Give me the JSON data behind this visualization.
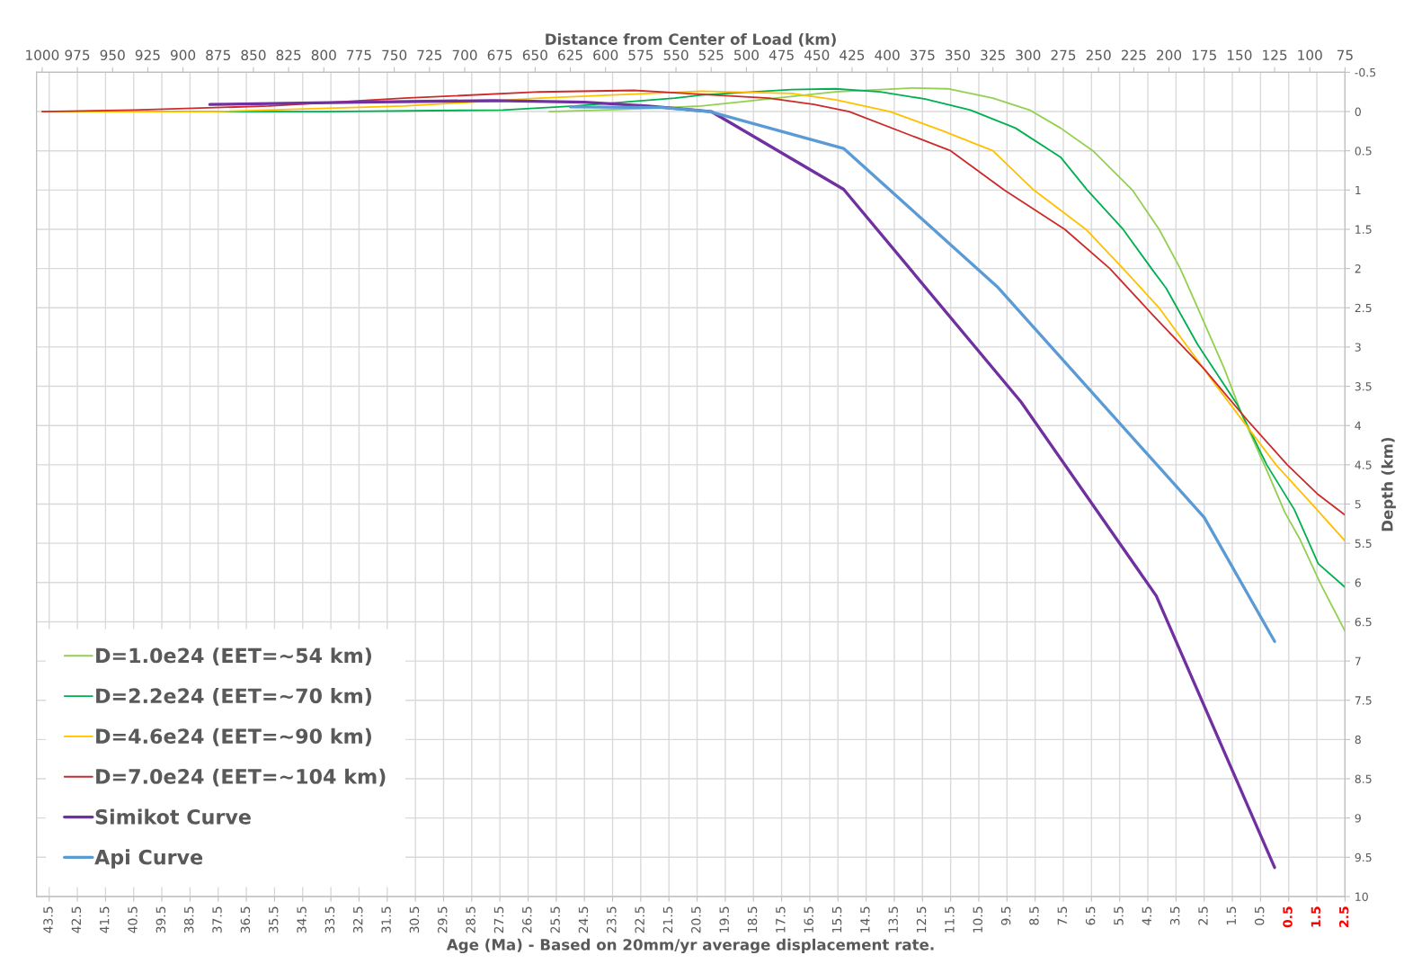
{
  "chart_data": {
    "type": "line",
    "xlabel": "Age (Ma) - Based on 20mm/yr average displacement rate.",
    "x2label": "Distance from Center of Load (km)",
    "ylabel": "Depth (km)",
    "xlim": [
      43.95,
      -2.5
    ],
    "xticks": [
      43.5,
      42.5,
      41.5,
      40.5,
      39.5,
      38.5,
      37.5,
      36.5,
      35.5,
      34.5,
      33.5,
      32.5,
      31.5,
      30.5,
      29.5,
      28.5,
      27.5,
      26.5,
      25.5,
      24.5,
      23.5,
      22.5,
      21.5,
      20.5,
      19.5,
      18.5,
      17.5,
      16.5,
      15.5,
      14.5,
      13.5,
      12.5,
      11.5,
      10.5,
      9.5,
      8.5,
      7.5,
      6.5,
      5.5,
      4.5,
      3.5,
      2.5,
      1.5,
      0.5,
      {
        "value": -0.5,
        "label": "0.5"
      },
      {
        "value": -1.5,
        "label": "1.5"
      },
      {
        "value": -2.5,
        "label": "2.5"
      }
    ],
    "x2lim": [
      1004,
      75
    ],
    "x2ticks": [
      1000,
      975,
      950,
      925,
      900,
      875,
      850,
      825,
      800,
      775,
      750,
      725,
      700,
      675,
      650,
      625,
      600,
      575,
      550,
      525,
      500,
      475,
      450,
      425,
      400,
      375,
      350,
      325,
      300,
      275,
      250,
      225,
      200,
      175,
      150,
      125,
      100,
      75
    ],
    "ylim": [
      10,
      -0.5
    ],
    "yticks": [
      -0.5,
      0,
      0.5,
      1,
      1.5,
      2,
      2.5,
      3,
      3.5,
      4,
      4.5,
      5,
      5.5,
      6,
      6.5,
      7,
      7.5,
      8,
      8.5,
      9,
      9.5,
      10
    ],
    "grid": true,
    "legend": "bottom left",
    "marker": "none",
    "line_style": "solid",
    "series": [
      {
        "name": "D=1.0e24 (EET=~54 km)",
        "color": "#92d050",
        "x": [
          25.75,
          22.9,
          20.35,
          18.75,
          15.6,
          12.85,
          11.6,
          10.0,
          8.7,
          7.6,
          6.45,
          5.05,
          4.1,
          3.35,
          2.73,
          1.78,
          1.14,
          0.28,
          -0.37,
          -0.9,
          -1.65,
          -2.5
        ],
        "values": [
          0.0,
          -0.03,
          -0.07,
          -0.13,
          -0.25,
          -0.3,
          -0.29,
          -0.17,
          -0.02,
          0.21,
          0.5,
          1.0,
          1.5,
          2.0,
          2.5,
          3.28,
          3.88,
          4.57,
          5.11,
          5.45,
          6.03,
          6.62
        ]
      },
      {
        "name": "D=2.2e24 (EET=~70 km)",
        "color": "#00b050",
        "x": [
          40.05,
          33.75,
          27.4,
          24.85,
          21.3,
          20.35,
          17.15,
          15.6,
          14.0,
          12.4,
          10.8,
          9.2,
          7.6,
          6.65,
          5.38,
          4.33,
          3.85,
          2.73,
          1.33,
          0.28,
          -0.7,
          -1.55,
          -2.5
        ],
        "values": [
          0.0,
          0.0,
          -0.02,
          -0.07,
          -0.17,
          -0.21,
          -0.28,
          -0.29,
          -0.25,
          -0.16,
          -0.02,
          0.21,
          0.58,
          1.0,
          1.5,
          2.02,
          2.25,
          2.97,
          3.73,
          4.5,
          5.07,
          5.76,
          6.06
        ]
      },
      {
        "name": "D=4.6e24 (EET=~90 km)",
        "color": "#ffc000",
        "x": [
          43.75,
          37.6,
          30.9,
          26.1,
          20.35,
          17.15,
          15.6,
          13.65,
          11.75,
          10.0,
          8.55,
          6.7,
          5.38,
          4.1,
          3.45,
          2.2,
          1.15,
          -0.05,
          -1.4,
          -2.5
        ],
        "values": [
          0.0,
          0.0,
          -0.07,
          -0.17,
          -0.26,
          -0.23,
          -0.15,
          0.0,
          0.25,
          0.5,
          1.0,
          1.5,
          2.0,
          2.5,
          2.82,
          3.43,
          3.93,
          4.5,
          5.03,
          5.47
        ]
      },
      {
        "name": "D=7.0e24 (EET=~104 km)",
        "color": "#cc2b2b",
        "x": [
          43.75,
          40.5,
          35.7,
          30.9,
          26.1,
          22.75,
          20.35,
          17.95,
          16.35,
          15.1,
          11.5,
          9.6,
          7.45,
          5.85,
          4.33,
          2.5,
          0.9,
          -0.45,
          -1.55,
          -2.5
        ],
        "values": [
          0.0,
          -0.02,
          -0.07,
          -0.17,
          -0.25,
          -0.27,
          -0.22,
          -0.17,
          -0.09,
          0.0,
          0.5,
          1.0,
          1.5,
          2.0,
          2.59,
          3.28,
          3.96,
          4.5,
          4.88,
          5.14
        ]
      },
      {
        "name": "Simikot Curve",
        "color": "#7030a0",
        "x": [
          37.8,
          32.5,
          27.7,
          24.5,
          22.25,
          20.0,
          15.3,
          9.0,
          4.2,
          0.0
        ],
        "values": [
          -0.09,
          -0.12,
          -0.14,
          -0.12,
          -0.07,
          0.0,
          0.99,
          3.7,
          6.17,
          9.63
        ]
      },
      {
        "name": "Api Curve",
        "color": "#5b9bd5",
        "x": [
          25.0,
          21.75,
          20.05,
          15.3,
          9.85,
          2.5,
          0.0
        ],
        "values": [
          -0.06,
          -0.05,
          0.0,
          0.47,
          2.23,
          5.17,
          6.75
        ]
      }
    ]
  }
}
